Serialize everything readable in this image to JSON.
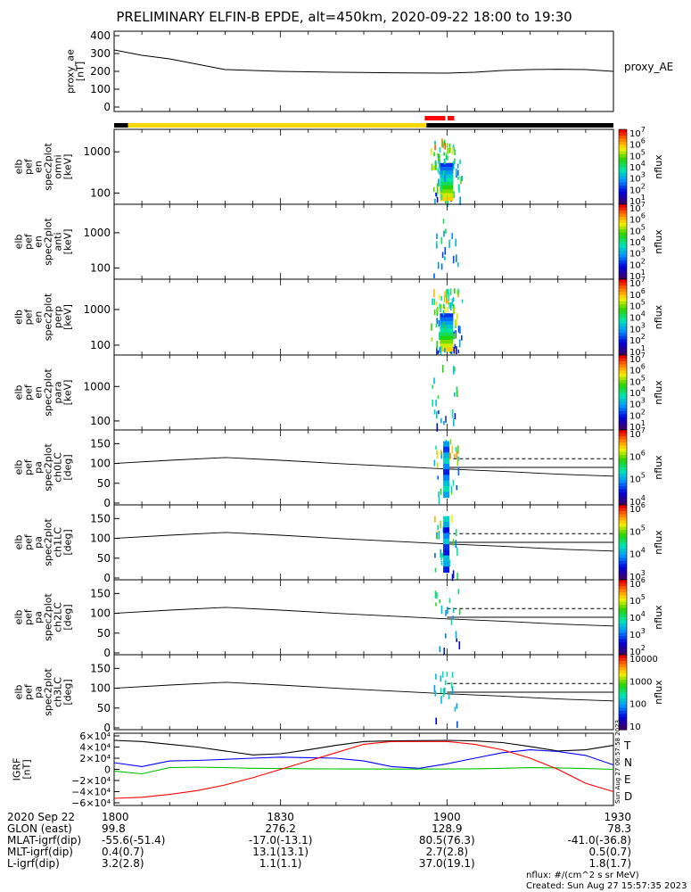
{
  "title": "PRELIMINARY ELFIN-B EPDE, alt=450km, 2020-09-22 18:00 to 19:30",
  "chart_data": [
    {
      "type": "line",
      "name": "proxy_ae",
      "ylabel_lines": [
        "proxy_ae",
        "[nT]"
      ],
      "legend": "proxy_AE",
      "ylim": [
        0,
        400
      ],
      "yticks": [
        "0",
        "100",
        "200",
        "300",
        "400"
      ],
      "xlim": [
        0,
        90
      ],
      "x": [
        0,
        5,
        10,
        15,
        20,
        25,
        30,
        40,
        50,
        60,
        65,
        70,
        75,
        80,
        85,
        90
      ],
      "values": [
        320,
        290,
        270,
        240,
        210,
        205,
        200,
        195,
        192,
        190,
        195,
        205,
        210,
        212,
        210,
        200
      ]
    },
    {
      "type": "bar",
      "name": "orbit-status-bar",
      "segments": [
        {
          "from": 0,
          "to": 2.5,
          "color": "#000000"
        },
        {
          "from": 2.5,
          "to": 56.3,
          "color": "#ffd700"
        },
        {
          "from": 56.3,
          "to": 90,
          "color": "#000000"
        }
      ],
      "markers": [
        {
          "from": 56.0,
          "to": 59.7,
          "color": "#ff0000"
        },
        {
          "from": 60.1,
          "to": 61.3,
          "color": "#ff0000"
        }
      ]
    },
    {
      "type": "heatmap",
      "ylog": true,
      "ylabel_lines": [
        "elb",
        "pef",
        "en",
        "spec2plot",
        "omni",
        "[keV]"
      ],
      "yticks": [
        [
          "1000",
          0.3
        ],
        [
          "100",
          0.85
        ]
      ],
      "zlabel": "nflux",
      "ztick_exps": [
        "1",
        "2",
        "3",
        "4",
        "5",
        "6",
        "7"
      ],
      "activity": [
        59.2,
        59.8,
        60.5
      ],
      "strength": 1.0
    },
    {
      "type": "heatmap",
      "ylog": true,
      "ylabel_lines": [
        "elb",
        "pef",
        "en",
        "spec2plot",
        "anti",
        "[keV]"
      ],
      "yticks": [
        [
          "1000",
          0.38
        ],
        [
          "100",
          0.85
        ]
      ],
      "zlabel": "nflux",
      "ztick_exps": [
        "1",
        "2",
        "3",
        "4",
        "5",
        "6",
        "7"
      ],
      "activity": [
        59.8
      ],
      "strength": 0.5
    },
    {
      "type": "heatmap",
      "ylog": true,
      "ylabel_lines": [
        "elb",
        "pef",
        "en",
        "spec2plot",
        "perp",
        "[keV]"
      ],
      "yticks": [
        [
          "1000",
          0.4
        ],
        [
          "100",
          0.87
        ]
      ],
      "zlabel": "nflux",
      "ztick_exps": [
        "1",
        "2",
        "3",
        "4",
        "5",
        "6",
        "7"
      ],
      "activity": [
        59.2,
        59.8,
        60.5
      ],
      "strength": 1.0
    },
    {
      "type": "heatmap",
      "ylog": true,
      "ylabel_lines": [
        "elb",
        "pef",
        "en",
        "spec2plot",
        "para",
        "[keV]"
      ],
      "yticks": [
        [
          "1000",
          0.42
        ],
        [
          "100",
          0.88
        ]
      ],
      "zlabel": "nflux",
      "ztick_exps": [
        "1",
        "2",
        "3",
        "4",
        "5",
        "6",
        "7"
      ],
      "activity": [
        59.5
      ],
      "strength": 0.6
    },
    {
      "type": "heatmap",
      "ylabel_lines": [
        "elb",
        "pef",
        "pa",
        "spec2plot",
        "ch0LC",
        "[deg]"
      ],
      "ylim": [
        0,
        180
      ],
      "yticks": [
        "0",
        "50",
        "100",
        "150"
      ],
      "zlabel": "nflux",
      "ztick_exps": [
        "4",
        "5",
        "6",
        "7"
      ],
      "activity": [
        59.8
      ],
      "strength": 1.0
    },
    {
      "type": "heatmap",
      "ylabel_lines": [
        "elb",
        "pef",
        "pa",
        "spec2plot",
        "ch1LC",
        "[deg]"
      ],
      "ylim": [
        0,
        180
      ],
      "yticks": [
        "0",
        "50",
        "100",
        "150"
      ],
      "zlabel": "nflux",
      "ztick_exps": [
        "3",
        "4",
        "5",
        "6"
      ],
      "activity": [
        59.8
      ],
      "strength": 0.8
    },
    {
      "type": "heatmap",
      "ylabel_lines": [
        "elb",
        "pef",
        "pa",
        "spec2plot",
        "ch2LC",
        "[deg]"
      ],
      "ylim": [
        0,
        180
      ],
      "yticks": [
        "0",
        "50",
        "100",
        "150"
      ],
      "zlabel": "nflux",
      "ztick_exps": [
        "2",
        "3",
        "4",
        "5",
        "6"
      ],
      "activity": [
        60.0
      ],
      "strength": 0.5
    },
    {
      "type": "heatmap",
      "ylabel_lines": [
        "elb",
        "pef",
        "pa",
        "spec2plot",
        "ch3LC",
        "[deg]"
      ],
      "ylim": [
        0,
        180
      ],
      "yticks": [
        "0",
        "50",
        "100",
        "150"
      ],
      "zlabel": "nflux",
      "zticks_plain": [
        "10",
        "100",
        "1000",
        "10000"
      ],
      "activity": [
        59.5
      ],
      "strength": 0.5
    },
    {
      "type": "line",
      "name": "igrf",
      "ylabel_lines": [
        "IGRF",
        "[nT]"
      ],
      "ylim": [
        -60000,
        60000
      ],
      "yticks": [
        "−6×10⁴",
        "−4×10⁴",
        "−2×10⁴",
        "0",
        "2×10⁴",
        "4×10⁴",
        "6×10⁴"
      ],
      "x": [
        0,
        5,
        10,
        15,
        20,
        25,
        30,
        35,
        40,
        45,
        50,
        55,
        60,
        65,
        70,
        75,
        80,
        85,
        90
      ],
      "series": [
        {
          "name": "T",
          "color": "#000000",
          "values": [
            52000,
            50000,
            45000,
            40000,
            33000,
            26000,
            28000,
            35000,
            43000,
            50000,
            51000,
            51500,
            52000,
            51000,
            48000,
            41000,
            33000,
            35000,
            43000
          ]
        },
        {
          "name": "N",
          "color": "#0000ff",
          "values": [
            12000,
            5000,
            15000,
            16000,
            18000,
            20000,
            22000,
            21000,
            20000,
            15000,
            5000,
            2000,
            10000,
            20000,
            30000,
            35000,
            32000,
            25000,
            8000
          ]
        },
        {
          "name": "E",
          "color": "#00c000",
          "values": [
            -3000,
            -8000,
            3000,
            4000,
            3000,
            2000,
            1500,
            1000,
            800,
            600,
            500,
            500,
            600,
            1000,
            2000,
            3000,
            2500,
            1500,
            0
          ]
        },
        {
          "name": "D",
          "color": "#ff0000",
          "values": [
            -52000,
            -50000,
            -45000,
            -38000,
            -28000,
            -15000,
            0,
            15000,
            30000,
            45000,
            50000,
            50000,
            50000,
            45000,
            35000,
            20000,
            0,
            -25000,
            -40000
          ]
        }
      ],
      "side_text": "Sun Aug 27 06:57:58 2023"
    }
  ],
  "x_axis": {
    "rows": [
      {
        "label": "2020 Sep 22",
        "values": [
          "1800",
          "1830",
          "1900",
          "1930"
        ]
      },
      {
        "label": "GLON (east)",
        "values": [
          "99.8",
          "276.2",
          "128.9",
          "78.3"
        ]
      },
      {
        "label": "MLAT-igrf(dip)",
        "values": [
          "-55.6(-51.4)",
          "-17.0(-13.1)",
          "80.5(76.3)",
          "-41.0(-36.8)"
        ]
      },
      {
        "label": "MLT-igrf(dip)",
        "values": [
          "0.4(0.7)",
          "13.1(13.1)",
          "2.7(2.8)",
          "0.5(0.7)"
        ]
      },
      {
        "label": "L-igrf(dip)",
        "values": [
          "3.2(2.8)",
          "1.1(1.1)",
          "37.0(19.1)",
          "1.8(1.7)"
        ]
      }
    ]
  },
  "footer": {
    "units": "nflux: #/(cm^2 s sr MeV)",
    "created": "Created: Sun Aug 27 15:57:35 2023"
  }
}
